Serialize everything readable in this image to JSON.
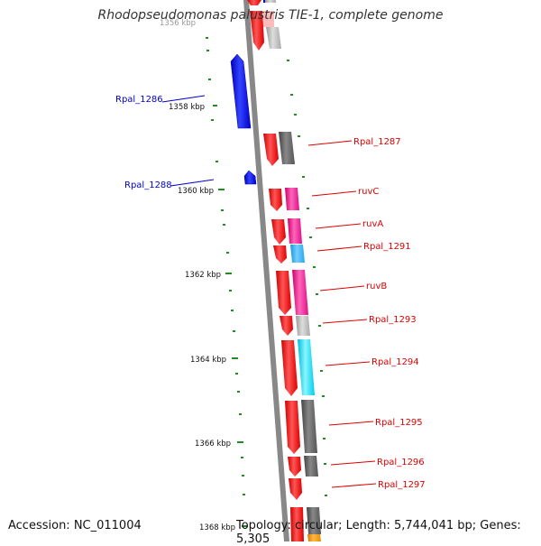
{
  "title": "Rhodopseudomonas palustris TIE-1, complete genome",
  "footer": {
    "accession": "Accession: NC_011004",
    "topology": "Topology: circular; Length: 5,744,041 bp; Genes: 5,305"
  },
  "colors": {
    "backbone": "#888888",
    "reverse_strand_gene": "#0000ee",
    "forward_strand_gene": "#ff0000",
    "cog_gray": "#666666",
    "cog_light_gray": "#bbbbbb",
    "cog_pink": "#ff3399",
    "cog_cyan": "#00e5ff",
    "cog_light_blue": "#33bbff",
    "cog_orange": "#ff9900",
    "tick": "#228b22",
    "reverse_label": "#0000cc",
    "forward_label": "#dd0000"
  },
  "scale_labels": [
    "1358 kbp",
    "1360 kbp",
    "1362 kbp",
    "1364 kbp",
    "1366 kbp",
    "1368 kbp",
    "1356 kbp"
  ],
  "genes_reverse": [
    {
      "label": "Rpal_1286"
    },
    {
      "label": "Rpal_1288"
    }
  ],
  "genes_forward": [
    {
      "label": "Rpal_1287"
    },
    {
      "label": "ruvC"
    },
    {
      "label": "ruvA"
    },
    {
      "label": "Rpal_1291"
    },
    {
      "label": "ruvB"
    },
    {
      "label": "Rpal_1293"
    },
    {
      "label": "Rpal_1294"
    },
    {
      "label": "Rpal_1295"
    },
    {
      "label": "Rpal_1296"
    },
    {
      "label": "Rpal_1297"
    }
  ]
}
